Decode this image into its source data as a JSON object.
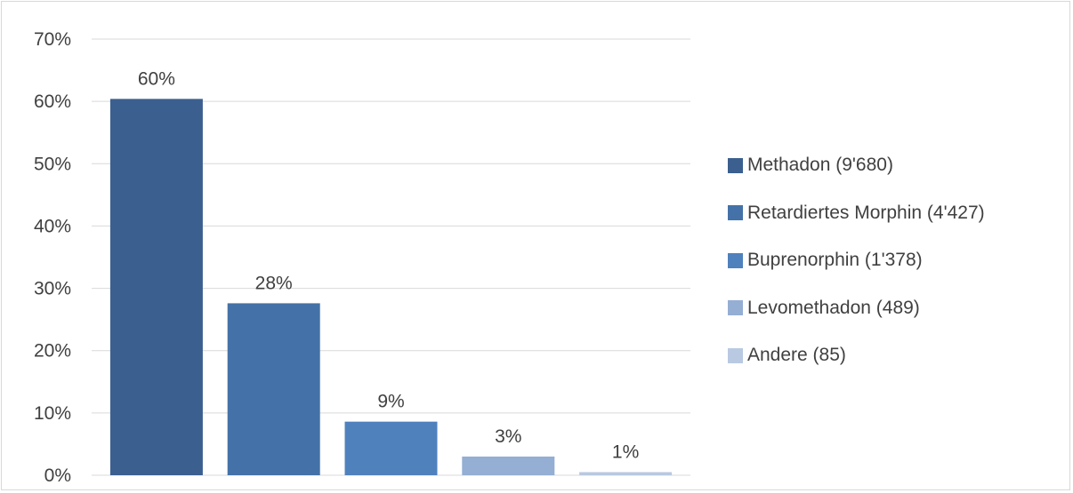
{
  "chart_data": {
    "type": "bar",
    "categories": [
      "Methadon (9'680)",
      "Retardiertes Morphin (4'427)",
      "Buprenorphin (1'378)",
      "Levomethadon (489)",
      "Andere (85)"
    ],
    "values": [
      60.4,
      27.6,
      8.6,
      3.0,
      0.5
    ],
    "data_labels": [
      "60%",
      "28%",
      "9%",
      "3%",
      "1%"
    ],
    "colors": [
      "#3b5f8f",
      "#4472a8",
      "#4f81bd",
      "#95aed3",
      "#b9c9e1"
    ],
    "yticks": [
      "0%",
      "10%",
      "20%",
      "30%",
      "40%",
      "50%",
      "60%",
      "70%"
    ],
    "ylim": [
      0,
      70
    ],
    "grid": true,
    "legend_position": "right",
    "title": "",
    "xlabel": "",
    "ylabel": ""
  }
}
